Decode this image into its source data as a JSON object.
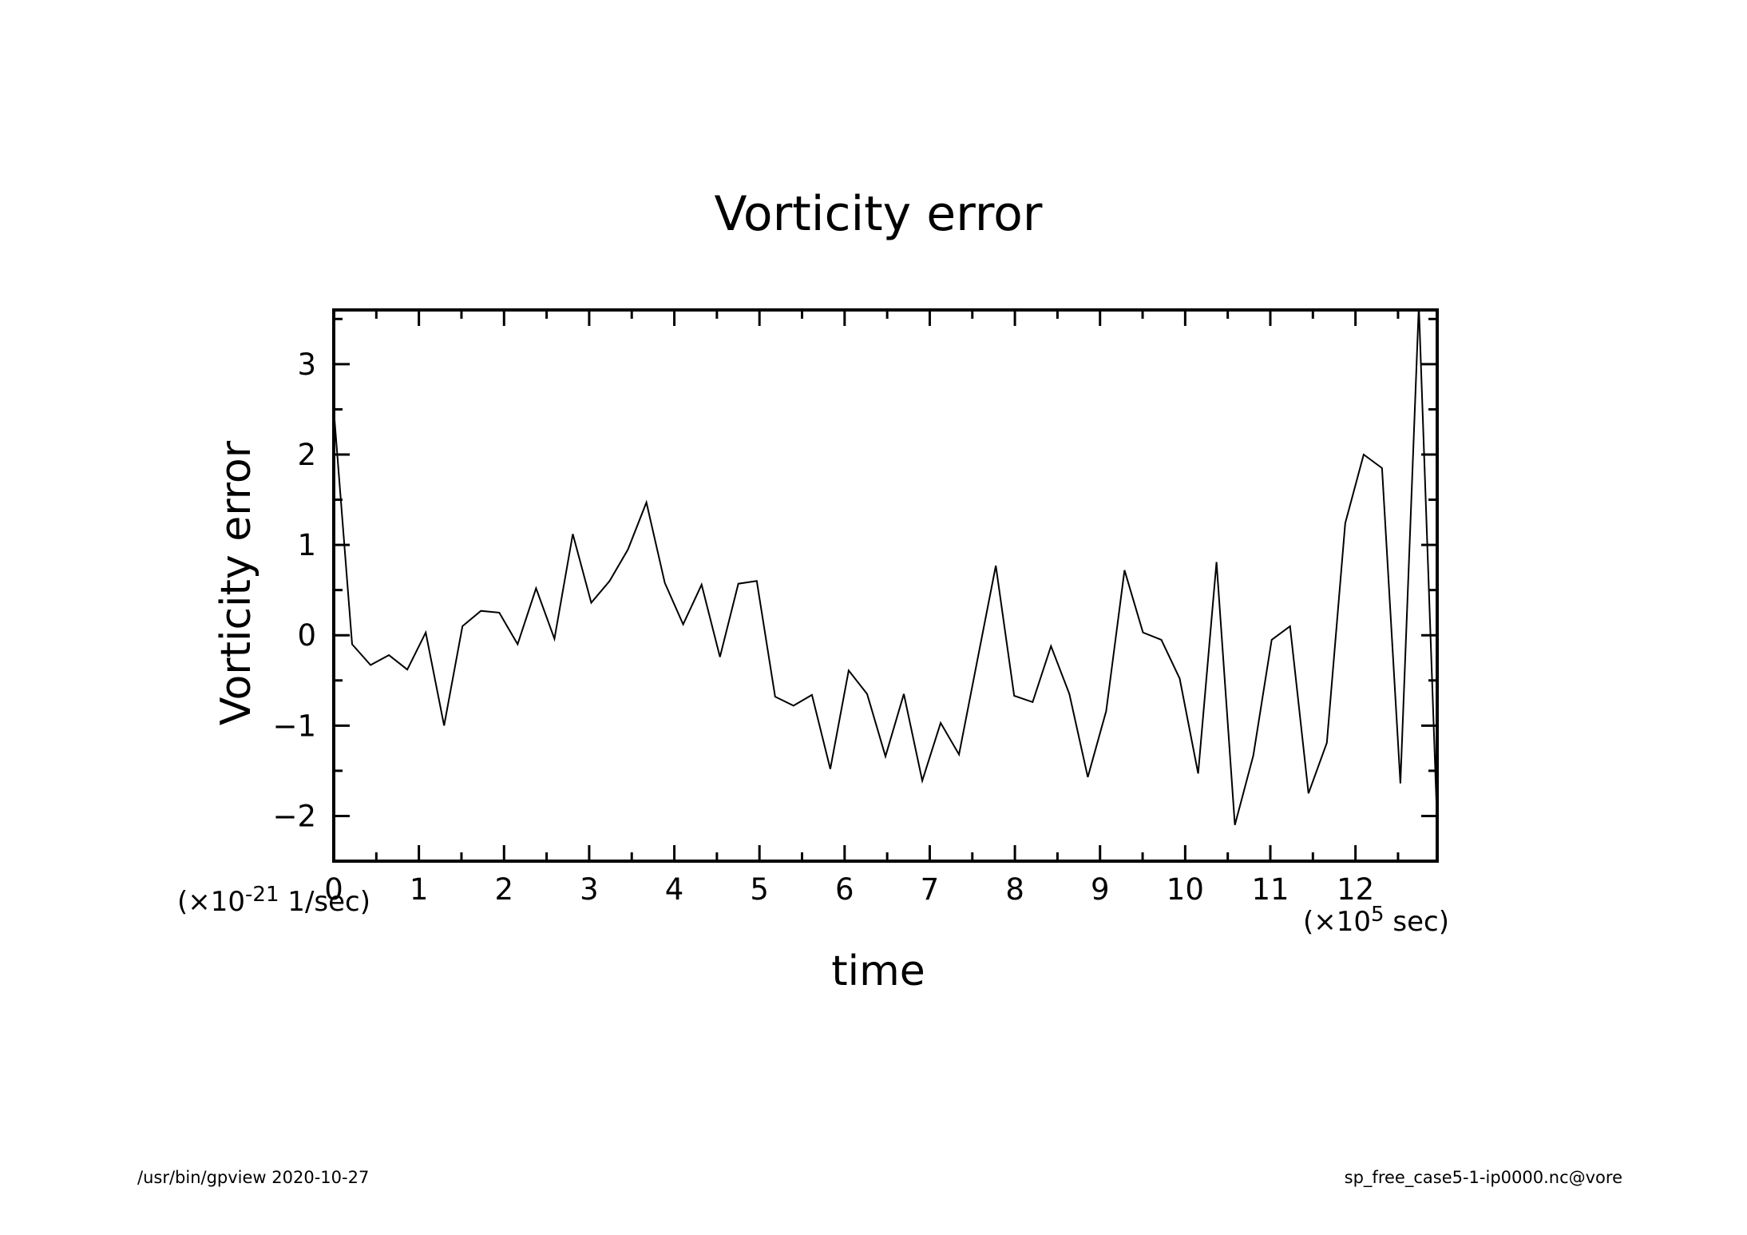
{
  "footer": {
    "left": "/usr/bin/gpview   2020-10-27",
    "right": "sp_free_case5-1-ip0000.nc@vore"
  },
  "chart_data": {
    "type": "line",
    "title": "Vorticity error",
    "xlabel": "time",
    "ylabel": "Vorticity error",
    "x_unit": "(×10",
    "x_unit_exp": "5",
    "x_unit_tail": " sec)",
    "y_unit": "(×10",
    "y_unit_exp": "-21",
    "y_unit_tail": " 1/sec)",
    "xlim": [
      0,
      12.96
    ],
    "ylim": [
      -2.5,
      3.6
    ],
    "x_ticks": [
      0,
      1,
      2,
      3,
      4,
      5,
      6,
      7,
      8,
      9,
      10,
      11,
      12
    ],
    "y_ticks": [
      -2,
      -1,
      0,
      1,
      2,
      3
    ],
    "grid": false,
    "series": [
      {
        "x": [
          0,
          0.216,
          0.432,
          0.648,
          0.864,
          1.08,
          1.296,
          1.512,
          1.728,
          1.944,
          2.16,
          2.376,
          2.592,
          2.808,
          3.024,
          3.24,
          3.456,
          3.672,
          3.888,
          4.104,
          4.32,
          4.536,
          4.752,
          4.968,
          5.184,
          5.4,
          5.616,
          5.832,
          6.048,
          6.264,
          6.48,
          6.696,
          6.912,
          7.128,
          7.344,
          7.56,
          7.776,
          7.992,
          8.208,
          8.424,
          8.64,
          8.856,
          9.072,
          9.288,
          9.504,
          9.72,
          9.936,
          10.152,
          10.368,
          10.584,
          10.8,
          11.016,
          11.232,
          11.448,
          11.664,
          11.88,
          12.096,
          12.312,
          12.528,
          12.744,
          12.96
        ],
        "values": [
          2.5,
          -0.1,
          -0.33,
          -0.22,
          -0.38,
          0.03,
          -1.0,
          0.1,
          0.27,
          0.25,
          -0.1,
          0.52,
          -0.04,
          1.12,
          0.36,
          0.6,
          0.95,
          1.47,
          0.58,
          0.12,
          0.56,
          -0.24,
          0.57,
          0.6,
          -0.68,
          -0.78,
          -0.66,
          -1.48,
          -0.39,
          -0.65,
          -1.34,
          -0.65,
          -1.61,
          -0.97,
          -1.32,
          -0.27,
          0.77,
          -0.67,
          -0.74,
          -0.12,
          -0.65,
          -1.57,
          -0.84,
          0.72,
          0.03,
          -0.05,
          -0.48,
          -1.53,
          0.81,
          -2.1,
          -1.33,
          -0.05,
          0.1,
          -1.75,
          -1.19,
          1.24,
          2.0,
          1.85,
          -1.64,
          3.65,
          -2.1
        ]
      }
    ]
  }
}
